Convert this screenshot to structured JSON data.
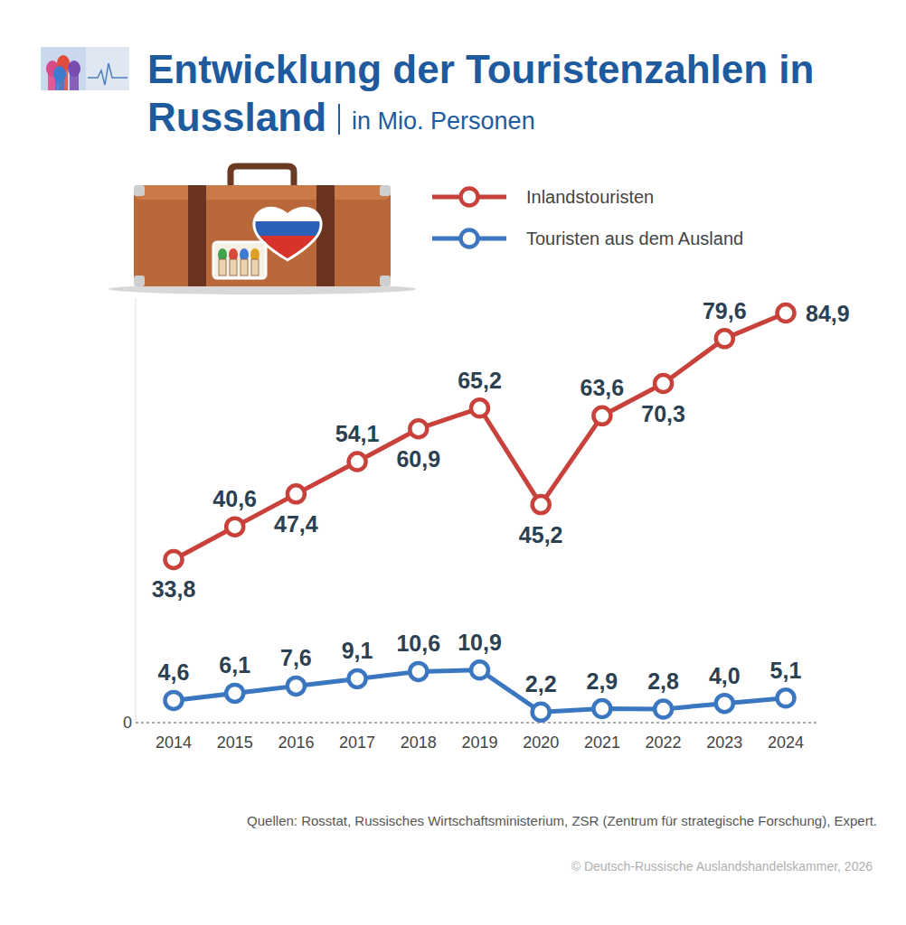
{
  "chart_data": {
    "type": "line",
    "title": "Entwicklung der Touristenzahlen in Russland",
    "subtitle": "in Mio. Personen",
    "categories": [
      "2014",
      "2015",
      "2016",
      "2017",
      "2018",
      "2019",
      "2020",
      "2021",
      "2022",
      "2023",
      "2024"
    ],
    "series": [
      {
        "name": "Inlandstouristen",
        "color": "#c8413a",
        "marker": "circle",
        "values": [
          33.8,
          40.6,
          47.4,
          54.1,
          60.9,
          65.2,
          45.2,
          63.6,
          70.3,
          79.6,
          84.9
        ],
        "value_labels": [
          "33,8",
          "40,6",
          "47,4",
          "54,1",
          "60,9",
          "65,2",
          "45,2",
          "63,6",
          "70,3",
          "79,6",
          "84,9"
        ]
      },
      {
        "name": "Touristen aus dem Ausland",
        "color": "#3a77c0",
        "marker": "circle",
        "values": [
          4.6,
          6.1,
          7.6,
          9.1,
          10.6,
          10.9,
          2.2,
          2.9,
          2.8,
          4.0,
          5.1
        ],
        "value_labels": [
          "4,6",
          "6,1",
          "7,6",
          "9,1",
          "10,6",
          "10,9",
          "2,2",
          "2,9",
          "2,8",
          "4,0",
          "5,1"
        ]
      }
    ],
    "ylim": [
      0,
      88
    ],
    "yticks": [
      0
    ],
    "grid": false,
    "legend": "top-right",
    "data_labels": true,
    "source": "Quellen: Rosstat, Russisches Wirtschaftsministerium, ZSR (Zentrum für strategische Forschung), Expert.",
    "credit": "© Deutsch-Russische Auslandshandelskammer, 2026"
  }
}
